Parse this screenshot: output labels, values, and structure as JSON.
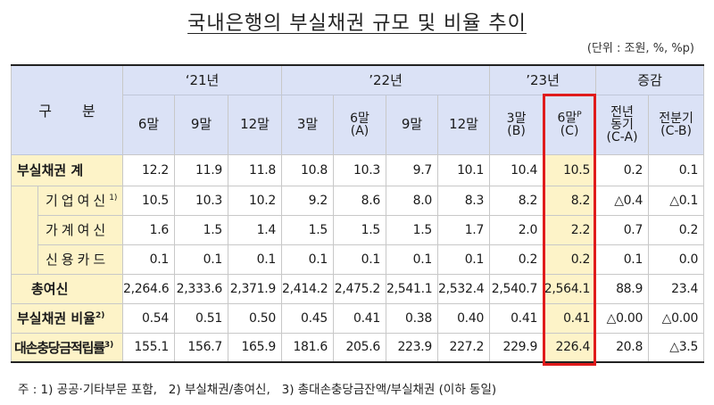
{
  "title": "국내은행의 부실채권 규모 및 비율 추이",
  "unit": "(단위 : 조원, %, %p)",
  "header": {
    "category_label_left": "구",
    "category_label_right": "분",
    "year_groups": [
      {
        "label": "‘21년",
        "span": 3
      },
      {
        "label": "’22년",
        "span": 4
      },
      {
        "label": "’23년",
        "span": 2
      },
      {
        "label": "증감",
        "span": 2
      }
    ],
    "columns": [
      {
        "label": "6말",
        "sub": ""
      },
      {
        "label": "9말",
        "sub": ""
      },
      {
        "label": "12말",
        "sub": ""
      },
      {
        "label": "3말",
        "sub": ""
      },
      {
        "label": "6말",
        "sub": "(A)"
      },
      {
        "label": "9말",
        "sub": ""
      },
      {
        "label": "12말",
        "sub": ""
      },
      {
        "label": "3말",
        "sub": "(B)"
      },
      {
        "label": "6말",
        "sup": "P",
        "sub": "(C)"
      },
      {
        "label": "전년",
        "label2": "동기",
        "sub": "(C-A)"
      },
      {
        "label": "전분기",
        "sub": "(C-B)"
      }
    ]
  },
  "rows": [
    {
      "label": "부실채권 계",
      "sup": "",
      "type": "main",
      "values": [
        "12.2",
        "11.9",
        "11.8",
        "10.8",
        "10.3",
        "9.7",
        "10.1",
        "10.4",
        "10.5",
        "0.2",
        "0.1"
      ]
    },
    {
      "label": "기업여신",
      "sup": "1)",
      "type": "sub",
      "values": [
        "10.5",
        "10.3",
        "10.2",
        "9.2",
        "8.6",
        "8.0",
        "8.3",
        "8.2",
        "8.2",
        "△0.4",
        "△0.1"
      ]
    },
    {
      "label": "가계여신",
      "sup": "",
      "type": "sub",
      "values": [
        "1.6",
        "1.5",
        "1.4",
        "1.5",
        "1.5",
        "1.5",
        "1.7",
        "2.0",
        "2.2",
        "0.7",
        "0.2"
      ]
    },
    {
      "label": "신용카드",
      "sup": "",
      "type": "sub",
      "values": [
        "0.1",
        "0.1",
        "0.1",
        "0.1",
        "0.1",
        "0.1",
        "0.1",
        "0.2",
        "0.2",
        "0.1",
        "0.0"
      ]
    },
    {
      "label": "총여신",
      "sup": "",
      "type": "main",
      "values": [
        "2,264.6",
        "2,333.6",
        "2,371.9",
        "2,414.2",
        "2,475.2",
        "2,541.1",
        "2,532.4",
        "2,540.7",
        "2,564.1",
        "88.9",
        "23.4"
      ]
    },
    {
      "label": "부실채권 비율",
      "sup": "2)",
      "type": "main",
      "values": [
        "0.54",
        "0.51",
        "0.50",
        "0.45",
        "0.41",
        "0.38",
        "0.40",
        "0.41",
        "0.41",
        "△0.00",
        "△0.00"
      ]
    },
    {
      "label": "대손충당금적립률",
      "sup": "3)",
      "type": "main",
      "values": [
        "155.1",
        "156.7",
        "165.9",
        "181.6",
        "205.6",
        "223.9",
        "227.2",
        "229.9",
        "226.4",
        "20.8",
        "△3.5"
      ]
    }
  ],
  "highlight_column_index": 8,
  "colors": {
    "header_bg": "#dbe2f6",
    "label_bg": "#fdf3c8",
    "highlight_border": "#e01b1b"
  },
  "footnote": "주 : 1) 공공·기타부문 포함,   2) 부실채권/총여신,   3) 총대손충당금잔액/부실채권 (이하 동일)"
}
